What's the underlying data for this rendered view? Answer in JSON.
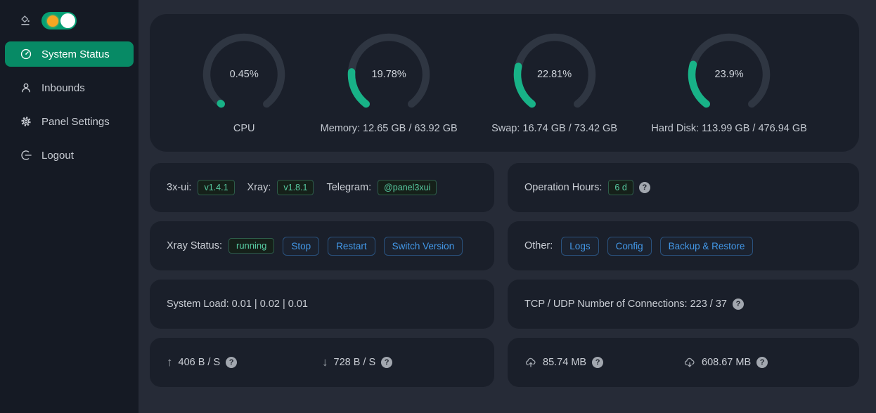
{
  "sidebar": {
    "items": [
      {
        "label": "System Status",
        "icon": "dashboard-icon",
        "active": true
      },
      {
        "label": "Inbounds",
        "icon": "user-icon",
        "active": false
      },
      {
        "label": "Panel Settings",
        "icon": "gear-icon",
        "active": false
      },
      {
        "label": "Logout",
        "icon": "logout-icon",
        "active": false
      }
    ],
    "theme_toggle_on": true
  },
  "status": {
    "gauges": [
      {
        "percent": 0.45,
        "percent_label": "0.45%",
        "label": "CPU"
      },
      {
        "percent": 19.78,
        "percent_label": "19.78%",
        "label": "Memory: 12.65 GB / 63.92 GB"
      },
      {
        "percent": 22.81,
        "percent_label": "22.81%",
        "label": "Swap: 16.74 GB / 73.42 GB"
      },
      {
        "percent": 23.9,
        "percent_label": "23.9%",
        "label": "Hard Disk: 113.99 GB / 476.94 GB"
      }
    ]
  },
  "cards": {
    "version": {
      "fields": [
        {
          "label": "3x-ui:",
          "value": "v1.4.1"
        },
        {
          "label": "Xray:",
          "value": "v1.8.1"
        },
        {
          "label": "Telegram:",
          "value": "@panel3xui"
        }
      ]
    },
    "uptime": {
      "label": "Operation Hours:",
      "value": "6 d"
    },
    "xray_status": {
      "label": "Xray Status:",
      "value": "running",
      "buttons": [
        "Stop",
        "Restart",
        "Switch Version"
      ]
    },
    "other": {
      "label": "Other:",
      "buttons": [
        "Logs",
        "Config",
        "Backup & Restore"
      ]
    },
    "system_load": {
      "text": "System Load: 0.01 | 0.02 | 0.01"
    },
    "connections": {
      "text": "TCP / UDP Number of Connections: 223 / 37"
    },
    "network_speed": {
      "upload": "406 B / S",
      "download": "728 B / S"
    },
    "network_total": {
      "upload": "85.74 MB",
      "download": "608.67 MB"
    }
  },
  "colors": {
    "accent_green": "#078a65",
    "toggle_green": "#06a074",
    "gauge_green": "#18b287",
    "gauge_track": "#2f3642",
    "tag_green_text": "#57cba2",
    "button_blue": "#4398e8",
    "sidebar_bg": "#151a24",
    "content_bg": "#262b37",
    "card_bg": "#1a1f2a"
  }
}
